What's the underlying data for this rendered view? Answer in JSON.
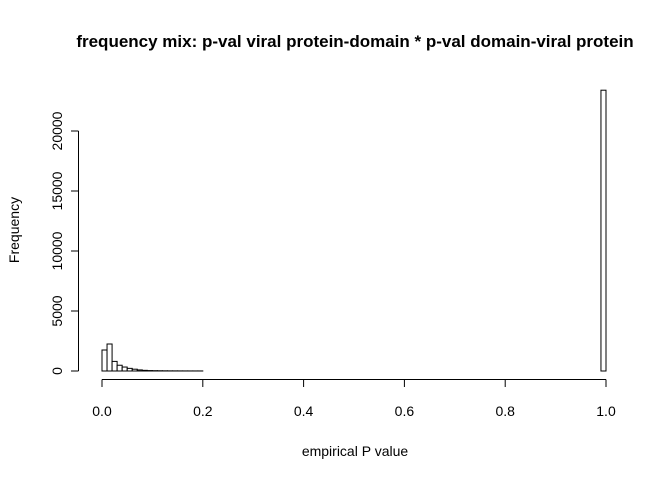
{
  "chart_data": {
    "type": "bar",
    "title": "frequency mix: p-val viral protein-domain * p-val domain-viral protein",
    "xlabel": "empirical P value",
    "ylabel": "Frequency",
    "xlim": [
      0.0,
      1.0
    ],
    "ylim": [
      0,
      23500
    ],
    "bin_width": 0.01,
    "x_ticks": [
      "0.0",
      "0.2",
      "0.4",
      "0.6",
      "0.8",
      "1.0"
    ],
    "y_ticks": [
      "0",
      "5000",
      "10000",
      "15000",
      "20000"
    ],
    "grid": false,
    "bar_fill": "#ffffff",
    "bar_stroke": "#000000",
    "bins": [
      {
        "x0": 0.0,
        "x1": 0.01,
        "count": 1750
      },
      {
        "x0": 0.01,
        "x1": 0.02,
        "count": 2250
      },
      {
        "x0": 0.02,
        "x1": 0.03,
        "count": 800
      },
      {
        "x0": 0.03,
        "x1": 0.04,
        "count": 480
      },
      {
        "x0": 0.04,
        "x1": 0.05,
        "count": 330
      },
      {
        "x0": 0.05,
        "x1": 0.06,
        "count": 220
      },
      {
        "x0": 0.06,
        "x1": 0.07,
        "count": 150
      },
      {
        "x0": 0.07,
        "x1": 0.08,
        "count": 90
      },
      {
        "x0": 0.08,
        "x1": 0.09,
        "count": 55
      },
      {
        "x0": 0.09,
        "x1": 0.1,
        "count": 35
      },
      {
        "x0": 0.1,
        "x1": 0.11,
        "count": 25
      },
      {
        "x0": 0.11,
        "x1": 0.12,
        "count": 20
      },
      {
        "x0": 0.12,
        "x1": 0.13,
        "count": 15
      },
      {
        "x0": 0.13,
        "x1": 0.14,
        "count": 12
      },
      {
        "x0": 0.14,
        "x1": 0.15,
        "count": 10
      },
      {
        "x0": 0.15,
        "x1": 0.16,
        "count": 8
      },
      {
        "x0": 0.16,
        "x1": 0.17,
        "count": 7
      },
      {
        "x0": 0.17,
        "x1": 0.18,
        "count": 6
      },
      {
        "x0": 0.18,
        "x1": 0.19,
        "count": 5
      },
      {
        "x0": 0.19,
        "x1": 0.2,
        "count": 5
      },
      {
        "x0": 0.99,
        "x1": 1.0,
        "count": 23400
      }
    ]
  }
}
